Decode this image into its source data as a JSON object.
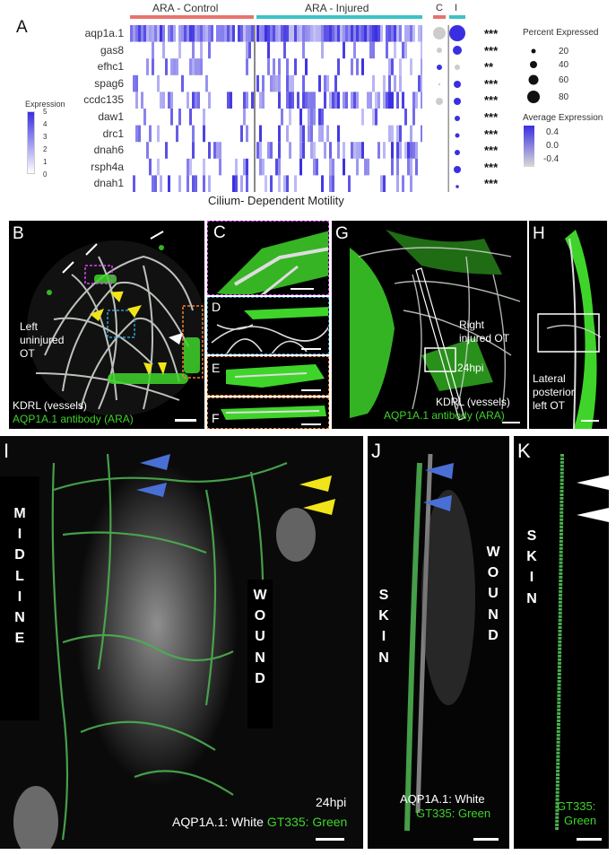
{
  "panels": {
    "a": "A",
    "b": "B",
    "c": "C",
    "d": "D",
    "e": "E",
    "f": "F",
    "g": "G",
    "h": "H",
    "i": "I",
    "j": "J",
    "k": "K"
  },
  "heatmap": {
    "group_control": "ARA - Control",
    "group_injured": "ARA - Injured",
    "dot_c": "C",
    "dot_i": "I",
    "genes": [
      "aqp1a.1",
      "gas8",
      "efhc1",
      "spag6",
      "ccdc135",
      "daw1",
      "drc1",
      "dnah6",
      "rsph4a",
      "dnah1"
    ],
    "significance": [
      "***",
      "***",
      "**",
      "***",
      "***",
      "***",
      "***",
      "***",
      "***",
      "***"
    ],
    "footer": "Cilium- Dependent Motility",
    "expression_title": "Expression",
    "expression_ticks": [
      "5",
      "4",
      "3",
      "2",
      "1",
      "0"
    ],
    "percent_title": "Percent Expressed",
    "percent_ticks": [
      "20",
      "40",
      "60",
      "80"
    ],
    "avg_title": "Average Expression",
    "avg_ticks": [
      "0.4",
      "0.0",
      "-0.4"
    ],
    "colors": {
      "control": "#e8736b",
      "injured": "#3cc3c4",
      "high": "#3a2fe0",
      "low": "#ffffff"
    }
  },
  "panel_b": {
    "label_1": "Left",
    "label_2": "uninjured",
    "label_3": "OT",
    "legend_1": "KDRL (vessels)",
    "legend_2": "AQP1A.1 antibody (ARA)"
  },
  "panel_g": {
    "label_1": "Right",
    "label_2": "injured OT",
    "time": "24hpi",
    "legend_1": "KDRL (vessels)",
    "legend_2": "AQP1A.1 antibody (ARA)"
  },
  "panel_h": {
    "label_1": "Lateral",
    "label_2": "posterior",
    "label_3": "left OT"
  },
  "panel_i": {
    "midline": [
      "M",
      "I",
      "D",
      "L",
      "I",
      "N",
      "E"
    ],
    "wound": [
      "W",
      "O",
      "U",
      "N",
      "D"
    ],
    "time": "24hpi",
    "legend_white": "AQP1A.1: White",
    "legend_green": "GT335: Green"
  },
  "panel_j": {
    "skin": [
      "S",
      "K",
      "I",
      "N"
    ],
    "wound": [
      "W",
      "O",
      "U",
      "N",
      "D"
    ],
    "legend_white": "AQP1A.1: White",
    "legend_green": "GT335: Green"
  },
  "panel_k": {
    "skin": [
      "S",
      "K",
      "I",
      "N"
    ],
    "legend_1": "GT335:",
    "legend_2": "Green"
  }
}
